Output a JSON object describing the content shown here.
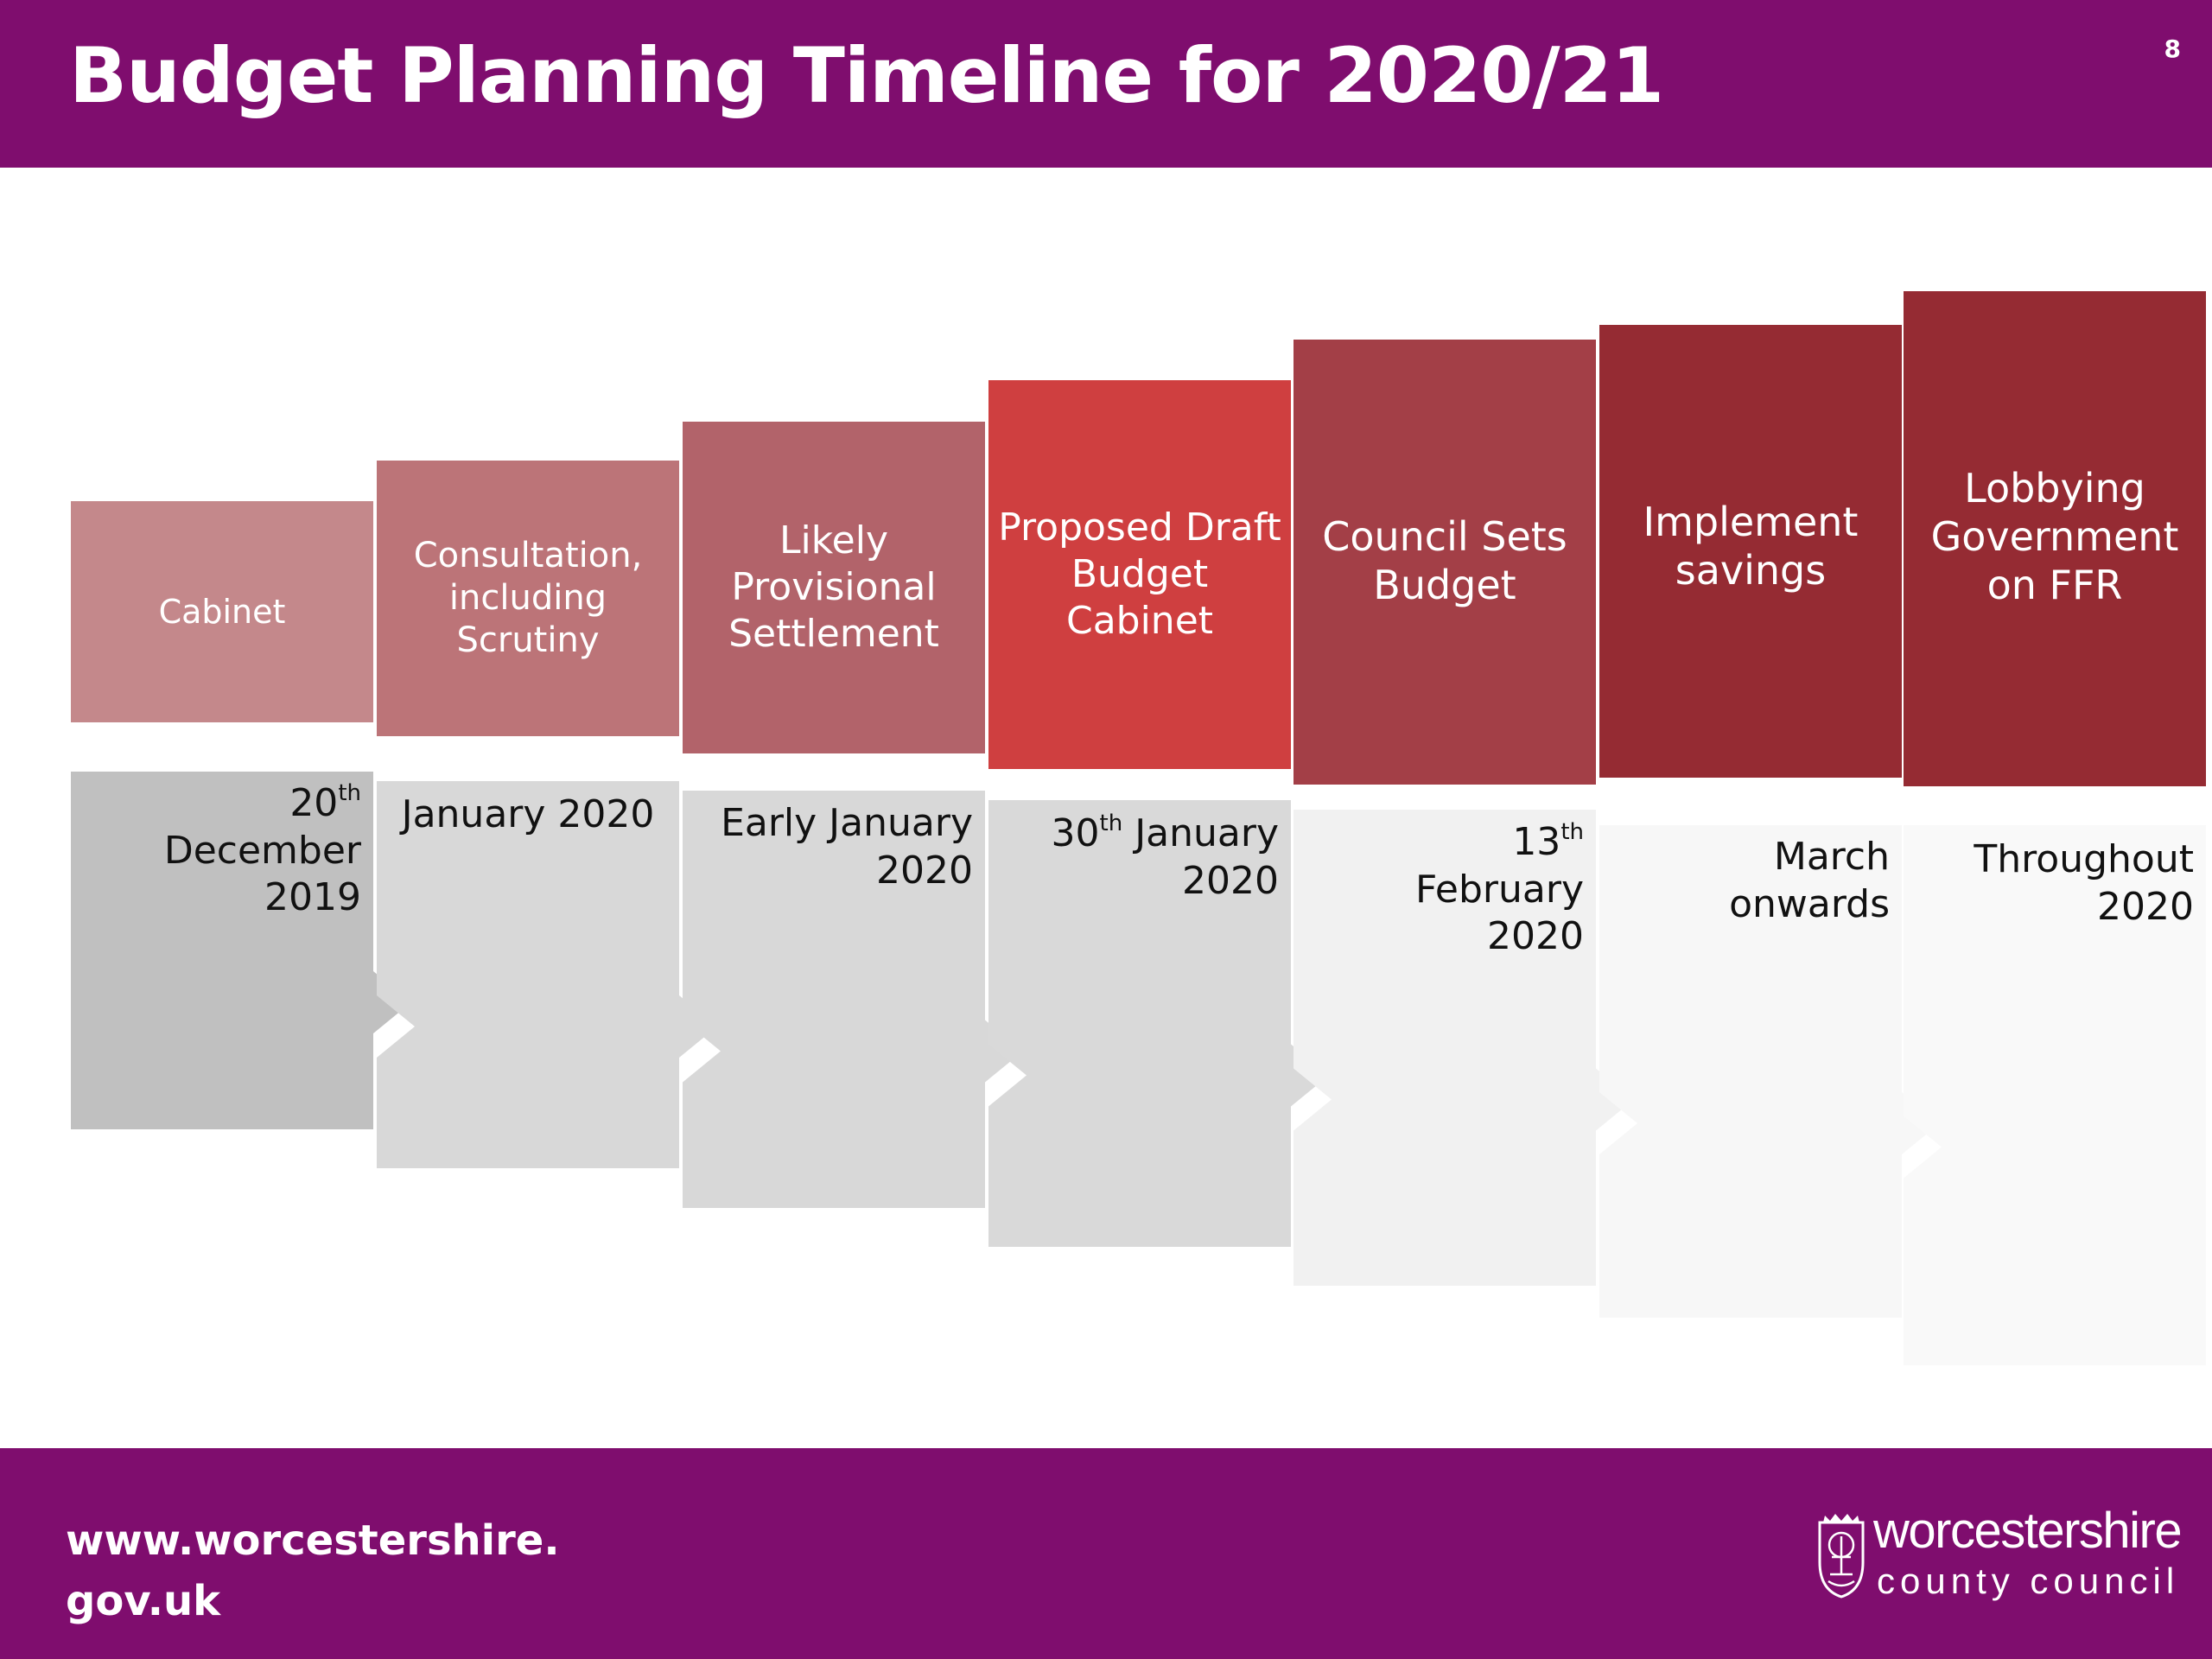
{
  "header": {
    "title": "Budget Planning Timeline for 2020/21",
    "page_number": "8"
  },
  "footer": {
    "url_line1": "www.worcestershire.",
    "url_line2": "gov.uk",
    "logo_wordmark": "worcestershire",
    "logo_subtext": "county council"
  },
  "timeline": {
    "steps": [
      {
        "label": "Cabinet",
        "date_prefix": "20",
        "date_suffix": "th",
        "date_rest": " December\n2019",
        "label_color": "#c4888b",
        "date_color": "#c0c0c0"
      },
      {
        "label": "Consultation,\nincluding\nScrutiny",
        "date_prefix": "",
        "date_suffix": "",
        "date_rest": "January 2020",
        "label_color": "#bc7478",
        "date_color": "#d8d8d8"
      },
      {
        "label": "Likely\nProvisional\nSettlement",
        "date_prefix": "",
        "date_suffix": "",
        "date_rest": "Early January\n2020",
        "label_color": "#b2636a",
        "date_color": "#d8d8d8"
      },
      {
        "label": "Proposed Draft\nBudget Cabinet",
        "date_prefix": "30",
        "date_suffix": "th",
        "date_rest": " January\n2020",
        "label_color": "#cf3f40",
        "date_color": "#d9d9d9"
      },
      {
        "label": "Council Sets\nBudget",
        "date_prefix": "13",
        "date_suffix": "th",
        "date_rest": "\nFebruary\n2020",
        "label_color": "#a33f47",
        "date_color": "#f1f1f1"
      },
      {
        "label": "Implement\nsavings",
        "date_prefix": "",
        "date_suffix": "",
        "date_rest": "March\nonwards",
        "label_color": "#952b33",
        "date_color": "#f7f7f7"
      },
      {
        "label": "Lobbying\nGovernment\non FFR",
        "date_prefix": "",
        "date_suffix": "",
        "date_rest": "Throughout\n2020",
        "label_color": "#952b33",
        "date_color": "#f9f9f9"
      }
    ]
  },
  "icons": {
    "logo": "county-crest-icon",
    "arrow": "chevron-right-notch"
  }
}
